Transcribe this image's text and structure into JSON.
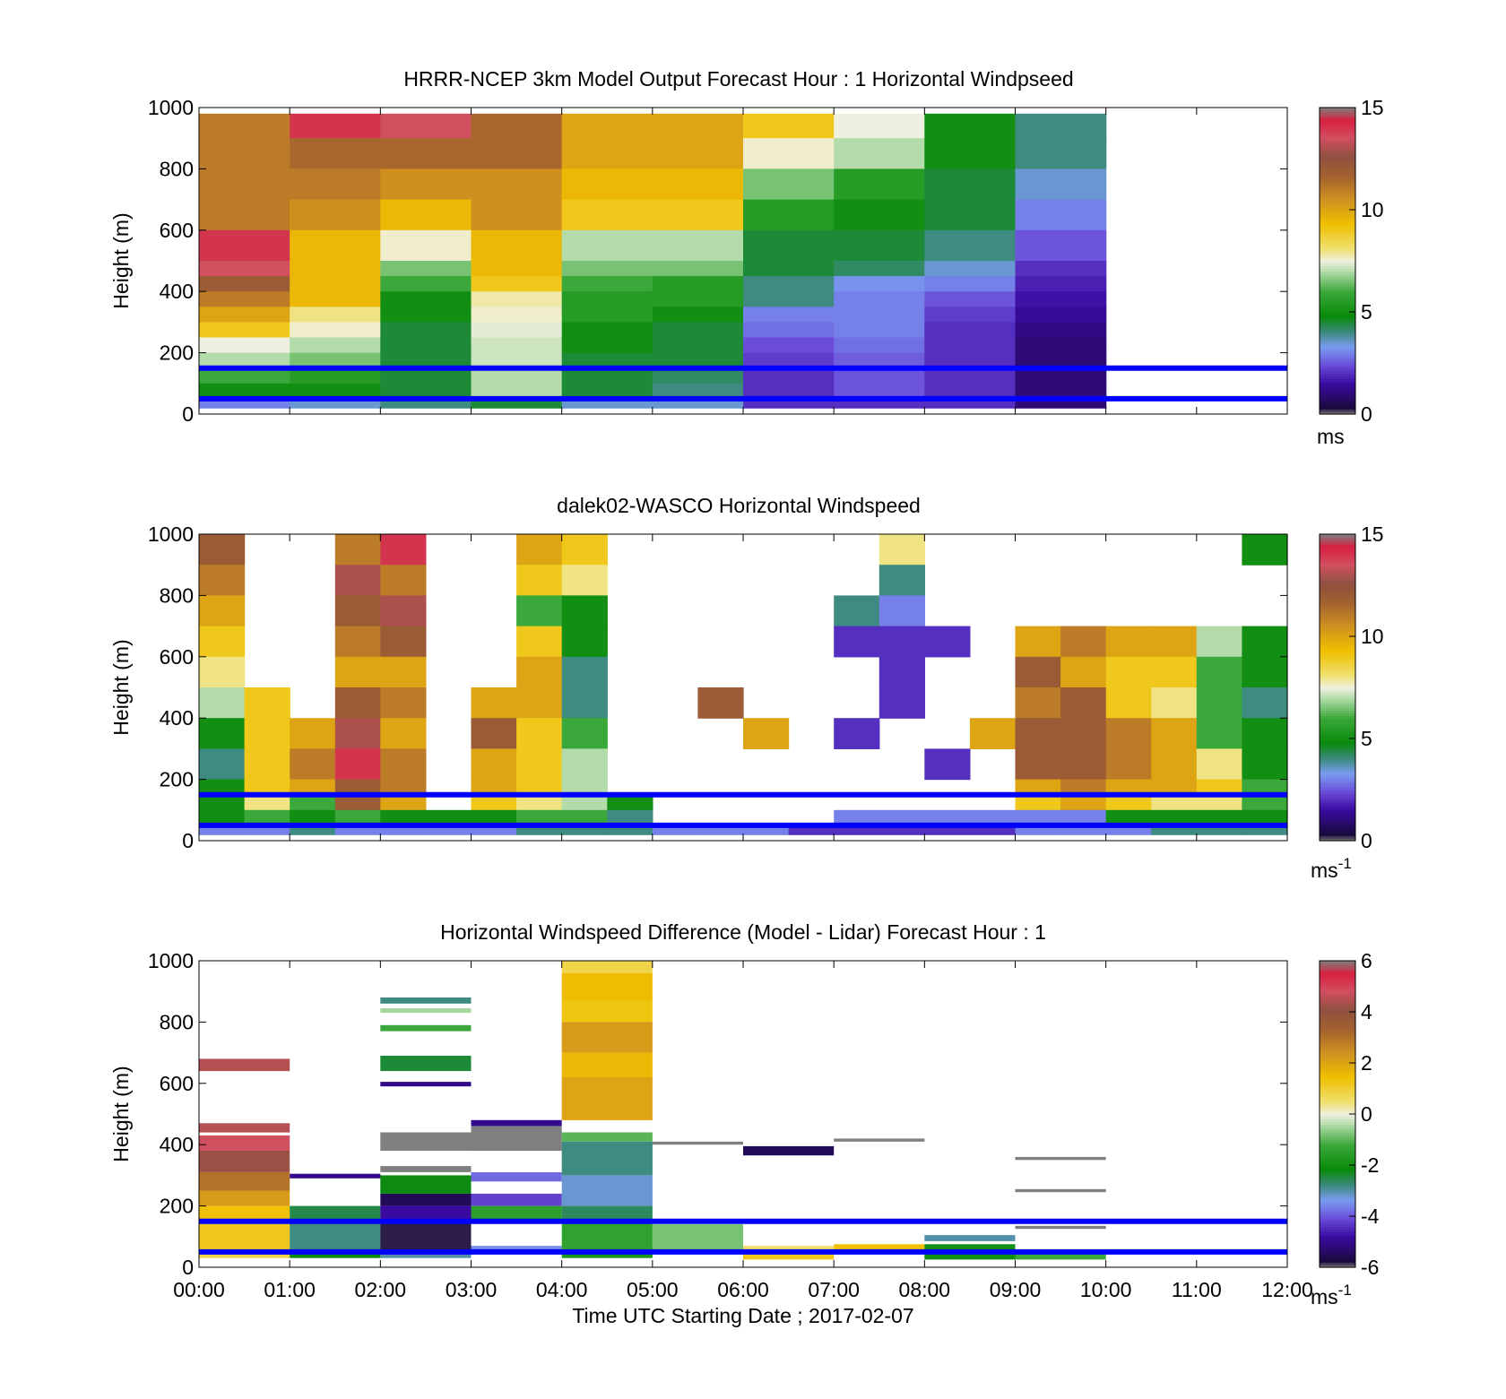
{
  "figure": {
    "time_axis_label": "Time UTC  Starting Date ; 2017-02-07",
    "time_ticks": [
      "00:00",
      "01:00",
      "02:00",
      "03:00",
      "04:00",
      "05:00",
      "06:00",
      "07:00",
      "08:00",
      "09:00",
      "10:00",
      "11:00",
      "12:00"
    ],
    "reference_line_color": "#0000ff",
    "reference_line_heights": [
      150,
      50
    ]
  },
  "chart_data": [
    {
      "type": "heatmap",
      "title": "HRRR-NCEP 3km Model Output   Forecast Hour : 1 Horizontal Windpseed",
      "ylabel": "Height (m)",
      "ylim": [
        0,
        1000
      ],
      "yticks": [
        "0",
        "200",
        "400",
        "600",
        "800",
        "1000"
      ],
      "x_range_hours": [
        0,
        12
      ],
      "colorbar": {
        "ticks": [
          "15",
          "10",
          "5",
          "0"
        ],
        "range": [
          0,
          15
        ],
        "unit": "ms"
      },
      "time_columns": [
        "00:00",
        "01:00",
        "02:00",
        "03:00",
        "04:00",
        "05:00",
        "06:00",
        "07:00",
        "08:00",
        "09:00"
      ],
      "height_levels": [
        [
          980,
          900
        ],
        [
          900,
          800
        ],
        [
          800,
          700
        ],
        [
          700,
          600
        ],
        [
          600,
          500
        ],
        [
          500,
          450
        ],
        [
          450,
          400
        ],
        [
          400,
          350
        ],
        [
          350,
          300
        ],
        [
          300,
          250
        ],
        [
          250,
          200
        ],
        [
          200,
          150
        ],
        [
          150,
          100
        ],
        [
          100,
          50
        ],
        [
          50,
          20
        ]
      ],
      "windspeed": [
        [
          11,
          14,
          13.5,
          11.5,
          10,
          10,
          9,
          7.5,
          5,
          4
        ],
        [
          11,
          11.5,
          11.5,
          11.5,
          10,
          10,
          7.6,
          7,
          5,
          4
        ],
        [
          11,
          11,
          10.5,
          10.5,
          9.5,
          9.5,
          6.5,
          5.5,
          4.5,
          3.5
        ],
        [
          11,
          10.5,
          9.5,
          10.5,
          9,
          9,
          5.5,
          5,
          4.5,
          3
        ],
        [
          14,
          9.5,
          7.6,
          9.5,
          7,
          7,
          4.5,
          4.5,
          4,
          2.5
        ],
        [
          13.5,
          9.5,
          6.5,
          9.5,
          6.5,
          6.5,
          4.5,
          4.2,
          3.5,
          2
        ],
        [
          12,
          9.5,
          6,
          9,
          6,
          5.5,
          4,
          3.2,
          3,
          1.8
        ],
        [
          11,
          9.5,
          5,
          7.8,
          5.5,
          5.5,
          4,
          3,
          2.5,
          1.6
        ],
        [
          10,
          8,
          5,
          7.6,
          5.5,
          5,
          3,
          3,
          2.2,
          1.4
        ],
        [
          9,
          7.6,
          4.5,
          7.4,
          5,
          4.5,
          2.8,
          3,
          2,
          1.2
        ],
        [
          7.5,
          7,
          4.5,
          7.2,
          5,
          4.5,
          2.4,
          2.8,
          2,
          1
        ],
        [
          7,
          6.5,
          4.5,
          7.2,
          4.5,
          4.5,
          2.2,
          2.6,
          2,
          1
        ],
        [
          6,
          5.5,
          4.5,
          7,
          4.5,
          4.2,
          2,
          2.5,
          2,
          1
        ],
        [
          5,
          5,
          4.5,
          7,
          4.5,
          4,
          2,
          2.5,
          2,
          1
        ],
        [
          3,
          3.5,
          4,
          4.5,
          3.5,
          3.5,
          2,
          2,
          2,
          1
        ]
      ]
    },
    {
      "type": "heatmap",
      "title": "dalek02-WASCO  Horizontal Windspeed",
      "ylabel": "Height (m)",
      "ylim": [
        0,
        1000
      ],
      "yticks": [
        "0",
        "200",
        "400",
        "600",
        "800",
        "1000"
      ],
      "x_range_hours": [
        0,
        12
      ],
      "colorbar": {
        "ticks": [
          "15",
          "10",
          "5",
          "0"
        ],
        "range": [
          0,
          15
        ],
        "unit": "ms-1"
      },
      "time_columns": [
        "00:00",
        "00:30",
        "01:00",
        "01:30",
        "02:00",
        "02:30",
        "03:00",
        "03:30",
        "04:00",
        "04:30",
        "05:00",
        "05:30",
        "06:00",
        "06:30",
        "07:00",
        "07:30",
        "08:00",
        "08:30",
        "09:00",
        "09:30",
        "10:00",
        "10:30",
        "11:00",
        "11:30"
      ],
      "height_levels": [
        [
          1000,
          900
        ],
        [
          900,
          800
        ],
        [
          800,
          700
        ],
        [
          700,
          600
        ],
        [
          600,
          500
        ],
        [
          500,
          400
        ],
        [
          400,
          300
        ],
        [
          300,
          200
        ],
        [
          200,
          150
        ],
        [
          150,
          100
        ],
        [
          100,
          50
        ],
        [
          50,
          20
        ]
      ],
      "windspeed": [
        [
          12,
          null,
          null,
          11,
          14,
          null,
          null,
          10,
          9,
          null,
          null,
          null,
          null,
          null,
          null,
          8,
          null,
          null,
          null,
          null,
          null,
          null,
          null,
          5
        ],
        [
          11,
          null,
          null,
          13,
          11,
          null,
          null,
          9,
          8,
          null,
          null,
          null,
          null,
          null,
          null,
          4,
          null,
          null,
          null,
          null,
          null,
          null,
          null,
          null
        ],
        [
          10,
          null,
          null,
          12,
          13,
          null,
          null,
          6,
          5,
          null,
          null,
          null,
          null,
          null,
          4,
          3,
          null,
          null,
          null,
          null,
          null,
          null,
          null,
          null
        ],
        [
          9,
          null,
          null,
          11,
          12,
          null,
          null,
          9,
          5,
          null,
          null,
          null,
          null,
          null,
          2,
          2,
          2,
          null,
          10,
          11,
          10,
          10,
          7,
          5
        ],
        [
          8,
          null,
          null,
          10,
          10,
          null,
          null,
          10,
          4,
          null,
          null,
          null,
          null,
          null,
          null,
          2,
          null,
          null,
          12,
          10,
          9,
          9,
          6,
          5
        ],
        [
          7,
          9,
          null,
          12,
          11,
          null,
          10,
          10,
          4,
          null,
          null,
          12,
          null,
          null,
          null,
          2,
          null,
          null,
          11,
          12,
          9,
          8,
          6,
          4
        ],
        [
          5,
          9,
          10,
          13,
          10,
          null,
          12,
          9,
          6,
          null,
          null,
          null,
          10,
          null,
          2,
          null,
          null,
          10,
          12,
          12,
          11,
          10,
          6,
          5
        ],
        [
          4,
          9,
          11,
          14,
          11,
          null,
          10,
          9,
          7,
          null,
          null,
          null,
          null,
          null,
          null,
          null,
          2,
          null,
          12,
          12,
          11,
          10,
          8,
          5
        ],
        [
          5,
          9,
          10,
          12,
          11,
          null,
          10,
          9,
          7,
          null,
          null,
          null,
          null,
          null,
          null,
          null,
          null,
          null,
          10,
          11,
          10,
          10,
          9,
          6
        ],
        [
          5,
          8,
          6,
          12,
          10,
          null,
          9,
          8,
          7,
          5,
          null,
          null,
          null,
          null,
          null,
          null,
          null,
          null,
          9,
          10,
          9,
          8,
          8,
          6
        ],
        [
          5,
          6,
          5,
          6,
          5,
          5,
          5,
          6,
          6,
          4,
          null,
          null,
          null,
          null,
          3,
          3,
          3,
          3,
          3,
          3,
          5,
          5,
          5,
          5
        ],
        [
          3,
          3,
          4,
          3,
          3,
          3,
          3,
          4,
          4,
          4,
          3,
          3,
          3,
          2,
          2,
          2,
          2,
          2,
          3,
          3,
          3,
          4,
          4,
          4
        ]
      ]
    },
    {
      "type": "heatmap",
      "title": "Horizontal Windspeed Difference (Model - Lidar) Forecast Hour : 1",
      "ylabel": "Height (m)",
      "ylim": [
        0,
        1000
      ],
      "yticks": [
        "0",
        "200",
        "400",
        "600",
        "800",
        "1000"
      ],
      "x_range_hours": [
        0,
        12
      ],
      "colorbar": {
        "ticks": [
          "6",
          "4",
          "2",
          "0",
          "-2",
          "-4",
          "-6"
        ],
        "range": [
          -6,
          6
        ],
        "unit": "ms-1"
      },
      "time_columns": [
        "00:00",
        "01:00",
        "02:00",
        "03:00",
        "04:00",
        "05:00",
        "06:00",
        "07:00",
        "08:00",
        "09:00"
      ],
      "segments": [
        {
          "col": 0,
          "h0": 640,
          "h1": 680,
          "v": 4.5
        },
        {
          "col": 0,
          "h0": 440,
          "h1": 470,
          "v": 4.5
        },
        {
          "col": 0,
          "h0": 380,
          "h1": 430,
          "v": 4.8
        },
        {
          "col": 0,
          "h0": 310,
          "h1": 380,
          "v": 4.2
        },
        {
          "col": 0,
          "h0": 250,
          "h1": 310,
          "v": 3
        },
        {
          "col": 0,
          "h0": 200,
          "h1": 250,
          "v": 2.2
        },
        {
          "col": 0,
          "h0": 150,
          "h1": 200,
          "v": 1.4
        },
        {
          "col": 0,
          "h0": 50,
          "h1": 150,
          "v": 1.2
        },
        {
          "col": 0,
          "h0": 30,
          "h1": 50,
          "v": 0.8
        },
        {
          "col": 1,
          "h0": 290,
          "h1": 305,
          "v": -5
        },
        {
          "col": 1,
          "h0": 150,
          "h1": 200,
          "v": -2.5
        },
        {
          "col": 1,
          "h0": 50,
          "h1": 150,
          "v": -2.8
        },
        {
          "col": 1,
          "h0": 30,
          "h1": 50,
          "v": -2.2
        },
        {
          "col": 2,
          "h0": 860,
          "h1": 880,
          "v": -2.8
        },
        {
          "col": 2,
          "h0": 830,
          "h1": 845,
          "v": -0.5
        },
        {
          "col": 2,
          "h0": 770,
          "h1": 790,
          "v": -1.2
        },
        {
          "col": 2,
          "h0": 640,
          "h1": 690,
          "v": -2.4
        },
        {
          "col": 2,
          "h0": 590,
          "h1": 605,
          "v": -5
        },
        {
          "col": 2,
          "h0": 380,
          "h1": 440,
          "v": 6
        },
        {
          "col": 2,
          "h0": 310,
          "h1": 330,
          "v": 6
        },
        {
          "col": 2,
          "h0": 240,
          "h1": 300,
          "v": -2.2
        },
        {
          "col": 2,
          "h0": 200,
          "h1": 240,
          "v": -5.5
        },
        {
          "col": 2,
          "h0": 150,
          "h1": 200,
          "v": -4.8
        },
        {
          "col": 2,
          "h0": 50,
          "h1": 150,
          "v": -5.8
        },
        {
          "col": 2,
          "h0": 30,
          "h1": 50,
          "v": -3
        },
        {
          "col": 3,
          "h0": 460,
          "h1": 480,
          "v": -5
        },
        {
          "col": 3,
          "h0": 380,
          "h1": 460,
          "v": 6
        },
        {
          "col": 3,
          "h0": 280,
          "h1": 310,
          "v": -3.8
        },
        {
          "col": 3,
          "h0": 200,
          "h1": 240,
          "v": -4.2
        },
        {
          "col": 3,
          "h0": 150,
          "h1": 200,
          "v": -1.5
        },
        {
          "col": 3,
          "h0": 50,
          "h1": 70,
          "v": -3.5
        },
        {
          "col": 4,
          "h0": 960,
          "h1": 1000,
          "v": 0.8
        },
        {
          "col": 4,
          "h0": 870,
          "h1": 960,
          "v": 1.5
        },
        {
          "col": 4,
          "h0": 800,
          "h1": 870,
          "v": 1.3
        },
        {
          "col": 4,
          "h0": 700,
          "h1": 800,
          "v": 2.2
        },
        {
          "col": 4,
          "h0": 620,
          "h1": 700,
          "v": 1.6
        },
        {
          "col": 4,
          "h0": 480,
          "h1": 620,
          "v": 2
        },
        {
          "col": 4,
          "h0": 410,
          "h1": 440,
          "v": -1
        },
        {
          "col": 4,
          "h0": 300,
          "h1": 410,
          "v": -2.8
        },
        {
          "col": 4,
          "h0": 200,
          "h1": 300,
          "v": -3.2
        },
        {
          "col": 4,
          "h0": 150,
          "h1": 200,
          "v": -2.6
        },
        {
          "col": 4,
          "h0": 50,
          "h1": 150,
          "v": -1.4
        },
        {
          "col": 4,
          "h0": 30,
          "h1": 50,
          "v": -1.8
        },
        {
          "col": 5,
          "h0": 400,
          "h1": 410,
          "v": 6
        },
        {
          "col": 5,
          "h0": 50,
          "h1": 140,
          "v": -0.8
        },
        {
          "col": 6,
          "h0": 365,
          "h1": 395,
          "v": -5.5
        },
        {
          "col": 6,
          "h0": 50,
          "h1": 70,
          "v": 0.5
        },
        {
          "col": 6,
          "h0": 25,
          "h1": 45,
          "v": 1.2
        },
        {
          "col": 7,
          "h0": 410,
          "h1": 420,
          "v": 6
        },
        {
          "col": 7,
          "h0": 50,
          "h1": 75,
          "v": 1.4
        },
        {
          "col": 8,
          "h0": 85,
          "h1": 105,
          "v": -3
        },
        {
          "col": 8,
          "h0": 50,
          "h1": 75,
          "v": -2
        },
        {
          "col": 8,
          "h0": 25,
          "h1": 45,
          "v": -2
        },
        {
          "col": 9,
          "h0": 350,
          "h1": 360,
          "v": 6
        },
        {
          "col": 9,
          "h0": 245,
          "h1": 255,
          "v": 6
        },
        {
          "col": 9,
          "h0": 125,
          "h1": 135,
          "v": 6
        },
        {
          "col": 9,
          "h0": 25,
          "h1": 45,
          "v": -1.2
        }
      ]
    }
  ]
}
